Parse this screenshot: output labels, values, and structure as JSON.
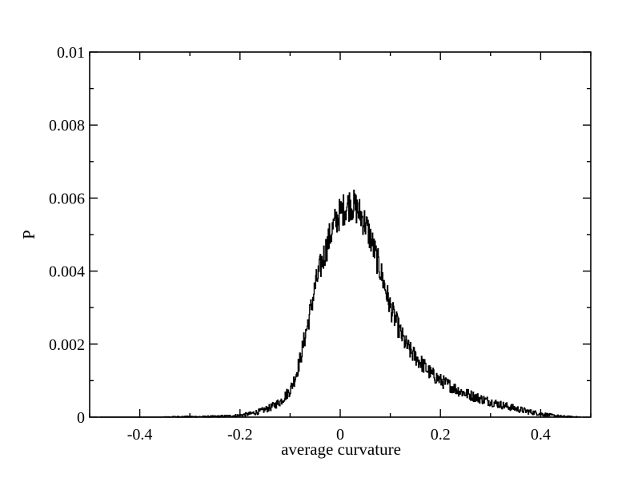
{
  "chart_data": {
    "type": "line",
    "title": "",
    "xlabel": "average curvature",
    "ylabel": "P",
    "xlim": [
      -0.5,
      0.5
    ],
    "ylim": [
      0,
      0.01
    ],
    "x_ticks": [
      -0.4,
      -0.2,
      0,
      0.2,
      0.4
    ],
    "x_tick_labels": [
      "-0.4",
      "-0.2",
      "0",
      "0.2",
      "0.4"
    ],
    "y_ticks": [
      0,
      0.002,
      0.004,
      0.006,
      0.008,
      0.01
    ],
    "y_tick_labels": [
      "0",
      "0.002",
      "0.004",
      "0.006",
      "0.008",
      "0.01"
    ],
    "grid": false,
    "legend": "none",
    "line_color": "#000000",
    "series": [
      {
        "x": [
          -0.48,
          -0.44,
          -0.4,
          -0.36,
          -0.32,
          -0.28,
          -0.24,
          -0.22,
          -0.2,
          -0.18,
          -0.16,
          -0.14,
          -0.12,
          -0.1,
          -0.09,
          -0.08,
          -0.07,
          -0.06,
          -0.05,
          -0.04,
          -0.03,
          -0.02,
          -0.01,
          0.0,
          0.01,
          0.02,
          0.03,
          0.04,
          0.05,
          0.06,
          0.07,
          0.08,
          0.09,
          0.1,
          0.11,
          0.12,
          0.13,
          0.14,
          0.16,
          0.18,
          0.2,
          0.22,
          0.24,
          0.26,
          0.28,
          0.3,
          0.32,
          0.34,
          0.36,
          0.38,
          0.4,
          0.42,
          0.44,
          0.46,
          0.48
        ],
        "values": [
          0.0,
          0.0,
          0.0,
          0.0,
          1e-05,
          1e-05,
          2e-05,
          3e-05,
          5e-05,
          9e-05,
          0.00016,
          0.00026,
          0.00042,
          0.00075,
          0.0011,
          0.0016,
          0.00225,
          0.0029,
          0.0036,
          0.0041,
          0.00455,
          0.005,
          0.00535,
          0.0056,
          0.00575,
          0.00585,
          0.00575,
          0.00555,
          0.0053,
          0.0049,
          0.00445,
          0.004,
          0.0035,
          0.003,
          0.00265,
          0.0023,
          0.002,
          0.0018,
          0.0015,
          0.0012,
          0.001,
          0.00085,
          0.0007,
          0.0006,
          0.0005,
          0.00042,
          0.00034,
          0.00027,
          0.0002,
          0.00014,
          9e-05,
          5e-05,
          2e-05,
          1e-05,
          0.0
        ]
      }
    ]
  }
}
